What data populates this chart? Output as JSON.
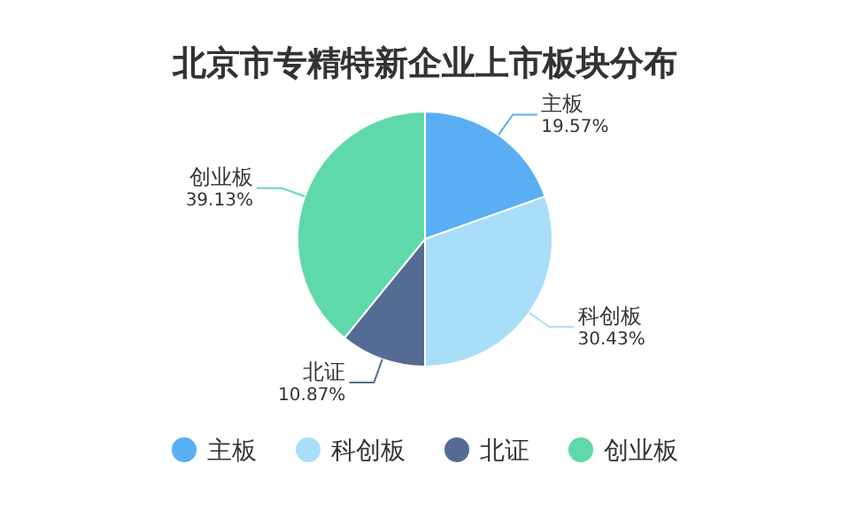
{
  "chart_data": {
    "type": "pie",
    "title": "北京市专精特新企业上市板块分布",
    "categories": [
      "主板",
      "科创板",
      "北证",
      "创业板"
    ],
    "values": [
      19.57,
      30.43,
      10.87,
      39.13
    ],
    "value_labels": [
      "19.57%",
      "30.43%",
      "10.87%",
      "39.13%"
    ],
    "colors": [
      "#5aaef3",
      "#a9def9",
      "#566b94",
      "#5fd9a9"
    ],
    "legend": "bottom"
  }
}
